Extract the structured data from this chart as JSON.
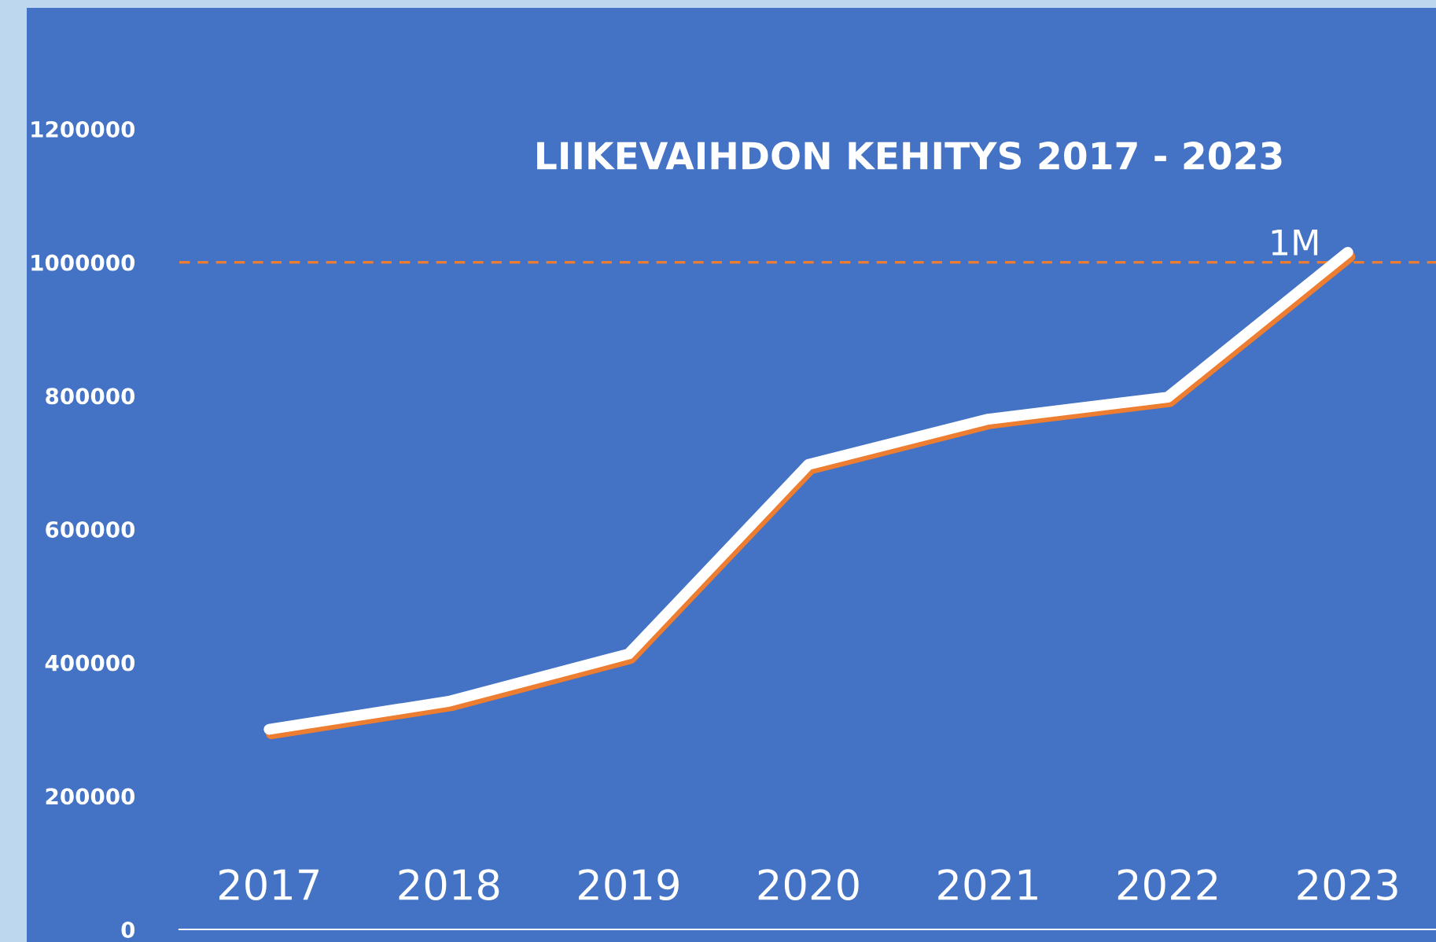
{
  "chart_data": {
    "type": "line",
    "title": "LIIKEVAIHDON KEHITYS 2017 - 2023",
    "categories": [
      "2017",
      "2018",
      "2019",
      "2020",
      "2021",
      "2022",
      "2023"
    ],
    "series": [
      {
        "color": "#ffffff",
        "values": [
          300000,
          342000,
          413000,
          697000,
          765000,
          798000,
          1015000
        ]
      }
    ],
    "ylim": [
      0,
      1200000
    ],
    "yticks": [
      0,
      200000,
      400000,
      600000,
      800000,
      1000000,
      1200000
    ],
    "ref_lines": [
      {
        "axis": "y",
        "value": 1000000,
        "label": "1M",
        "color": "#ed7d31",
        "line_style": "dashed"
      }
    ],
    "grid": false,
    "marker": "none",
    "line_style": "solid"
  }
}
